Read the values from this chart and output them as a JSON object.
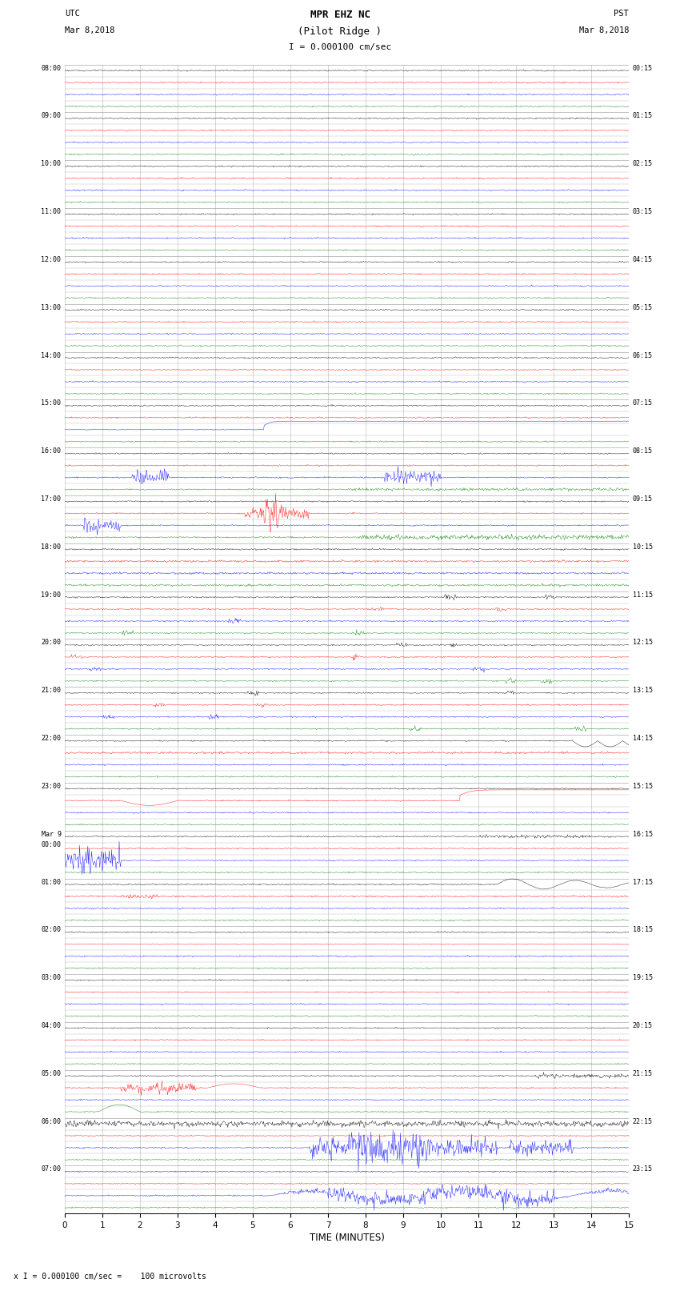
{
  "title_line1": "MPR EHZ NC",
  "title_line2": "(Pilot Ridge )",
  "scale_label": "I = 0.000100 cm/sec",
  "left_label_line1": "UTC",
  "left_label_line2": "Mar 8,2018",
  "right_label_line1": "PST",
  "right_label_line2": "Mar 8,2018",
  "bottom_label": "x I = 0.000100 cm/sec =    100 microvolts",
  "xlabel": "TIME (MINUTES)",
  "left_times": [
    "08:00",
    "09:00",
    "10:00",
    "11:00",
    "12:00",
    "13:00",
    "14:00",
    "15:00",
    "16:00",
    "17:00",
    "18:00",
    "19:00",
    "20:00",
    "21:00",
    "22:00",
    "23:00",
    "Mar 9\n00:00",
    "01:00",
    "02:00",
    "03:00",
    "04:00",
    "05:00",
    "06:00",
    "07:00"
  ],
  "right_times": [
    "00:15",
    "01:15",
    "02:15",
    "03:15",
    "04:15",
    "05:15",
    "06:15",
    "07:15",
    "08:15",
    "09:15",
    "10:15",
    "11:15",
    "12:15",
    "13:15",
    "14:15",
    "15:15",
    "16:15",
    "17:15",
    "18:15",
    "19:15",
    "20:15",
    "21:15",
    "22:15",
    "23:15"
  ],
  "n_hours": 24,
  "subrows_per_hour": 4,
  "n_minutes": 15,
  "bg_color": "#ffffff",
  "grid_color": "#888888",
  "fig_width": 8.5,
  "fig_height": 16.13
}
